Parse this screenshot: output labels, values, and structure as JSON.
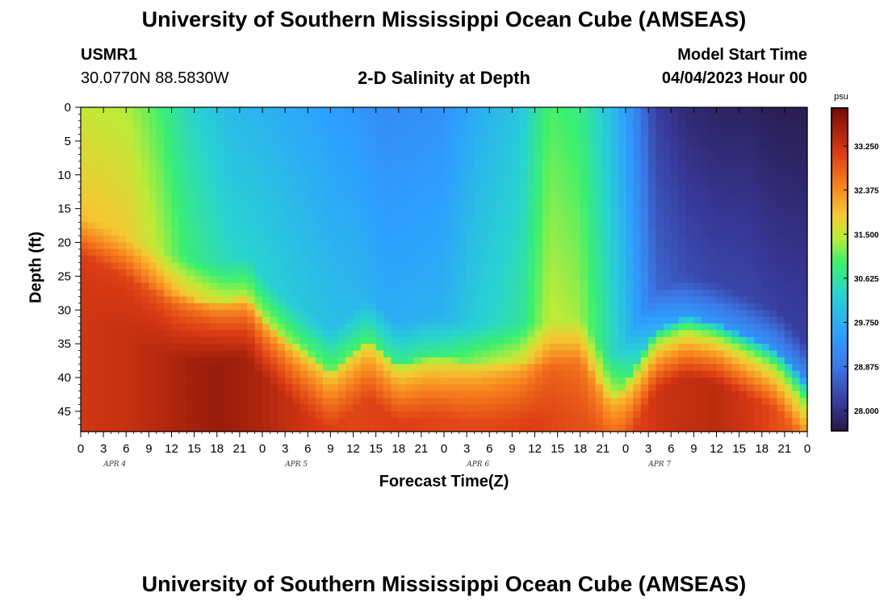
{
  "header": {
    "title": "University of Southern Mississippi Ocean Cube (AMSEAS)",
    "station_name": "USMR1",
    "station_coords": "30.0770N  88.5830W",
    "plot_title": "2-D Salinity at Depth",
    "model_start_label": "Model Start Time",
    "model_start_value": "04/04/2023 Hour 00"
  },
  "footer": {
    "title": "University of Southern Mississippi Ocean Cube (AMSEAS)"
  },
  "chart_data": {
    "type": "heatmap",
    "xlabel": "Forecast Time(Z)",
    "ylabel": "Depth (ft)",
    "colorbar_unit": "psu",
    "x_range_hours": [
      0,
      96
    ],
    "x_tick_labels": [
      "0",
      "3",
      "6",
      "9",
      "12",
      "15",
      "18",
      "21",
      "0",
      "3",
      "6",
      "9",
      "12",
      "15",
      "18",
      "21",
      "0",
      "3",
      "6",
      "9",
      "12",
      "15",
      "18",
      "21",
      "0",
      "3",
      "6",
      "9",
      "12",
      "15",
      "18",
      "21",
      "0"
    ],
    "date_labels": [
      "APR 4",
      "APR 5",
      "APR 6",
      "APR 7"
    ],
    "y_range_ft": [
      0,
      48
    ],
    "y_ticks": [
      "0",
      "5",
      "10",
      "15",
      "20",
      "25",
      "30",
      "35",
      "40",
      "45"
    ],
    "color_range": [
      27.6,
      34.0
    ],
    "colorbar_ticks": [
      "33.250",
      "32.375",
      "31.500",
      "30.625",
      "29.750",
      "28.875",
      "28.000"
    ],
    "halocline_depth_ft": {
      "hours": [
        0,
        6,
        12,
        18,
        22,
        24,
        28,
        33,
        38,
        42,
        46,
        48,
        52,
        57,
        62,
        66,
        70,
        72,
        76,
        80,
        84,
        88,
        92,
        96
      ],
      "values": [
        22,
        25,
        28,
        29,
        28,
        31,
        35,
        39,
        34,
        38,
        37,
        37,
        38,
        38,
        38,
        37,
        43,
        41,
        33,
        31,
        32,
        34,
        36,
        41
      ]
    },
    "surface_salinity_psu": {
      "hours": [
        0,
        6,
        10,
        14,
        20,
        24,
        30,
        36,
        40,
        48,
        52,
        58,
        62,
        66,
        70,
        72,
        76,
        80,
        84,
        88,
        92,
        96
      ],
      "values": [
        31.5,
        31.4,
        31.0,
        30.4,
        29.9,
        29.8,
        29.6,
        29.4,
        29.2,
        29.3,
        29.7,
        30.1,
        31.0,
        30.8,
        30.0,
        29.5,
        28.2,
        27.9,
        27.8,
        27.8,
        27.7,
        27.7
      ]
    },
    "bottom_salinity_psu": {
      "hours": [
        0,
        6,
        12,
        18,
        24,
        30,
        36,
        42,
        48,
        54,
        60,
        66,
        72,
        78,
        84,
        90,
        96
      ],
      "values": [
        33.2,
        33.3,
        33.5,
        33.7,
        33.5,
        33.2,
        33.0,
        33.1,
        33.0,
        33.0,
        33.1,
        32.9,
        33.0,
        33.3,
        33.4,
        33.1,
        32.6
      ]
    }
  }
}
